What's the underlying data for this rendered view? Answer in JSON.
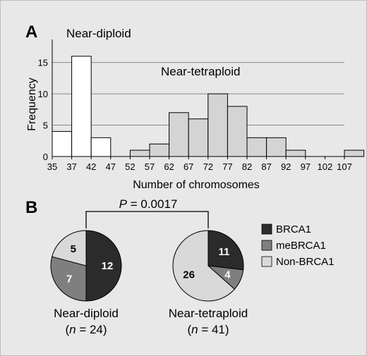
{
  "chart_data": [
    {
      "type": "bar",
      "panel_label": "A",
      "xlabel": "Number of chromosomes",
      "ylabel": "Frequency",
      "ylim": [
        0,
        18
      ],
      "yticks": [
        0,
        5,
        10,
        15
      ],
      "grid": true,
      "bins_start": 35,
      "bin_width": 5,
      "xtick_labels": [
        "35",
        "37",
        "42",
        "47",
        "52",
        "57",
        "62",
        "67",
        "72",
        "77",
        "82",
        "87",
        "92",
        "97",
        "102",
        "107"
      ],
      "series": [
        {
          "name": "Near-diploid",
          "fill": "#ffffff",
          "start_index": 0,
          "values": [
            4,
            16,
            3
          ]
        },
        {
          "name": "Near-tetraploid",
          "fill": "#d4d4d4",
          "start_index": 3,
          "values": [
            0,
            1,
            2,
            7,
            6,
            10,
            8,
            3,
            3,
            1,
            0,
            0,
            1
          ]
        }
      ]
    },
    {
      "type": "pie",
      "panel_label": "B",
      "pvalue": {
        "p": "P",
        "rest": " = 0.0017"
      },
      "legend": [
        {
          "label": "BRCA1",
          "color": "#2b2b2b"
        },
        {
          "label": "meBRCA1",
          "color": "#7f7f7f"
        },
        {
          "label": "Non-BRCA1",
          "color": "#d9d9d9"
        }
      ],
      "pies": [
        {
          "title": "Near-diploid",
          "n_label": "(n = 24)",
          "n_pre": "(",
          "n_var": "n",
          "n_post": " = 24)",
          "slices": [
            {
              "category": "BRCA1",
              "value": 12,
              "label_color": "#ffffff"
            },
            {
              "category": "meBRCA1",
              "value": 7,
              "label_color": "#ffffff"
            },
            {
              "category": "Non-BRCA1",
              "value": 5,
              "label_color": "#000000"
            }
          ]
        },
        {
          "title": "Near-tetraploid",
          "n_label": "(n = 41)",
          "n_pre": "(",
          "n_var": "n",
          "n_post": " = 41)",
          "slices": [
            {
              "category": "BRCA1",
              "value": 11,
              "label_color": "#ffffff"
            },
            {
              "category": "meBRCA1",
              "value": 4,
              "label_color": "#ffffff"
            },
            {
              "category": "Non-BRCA1",
              "value": 26,
              "label_color": "#000000"
            }
          ]
        }
      ]
    }
  ]
}
